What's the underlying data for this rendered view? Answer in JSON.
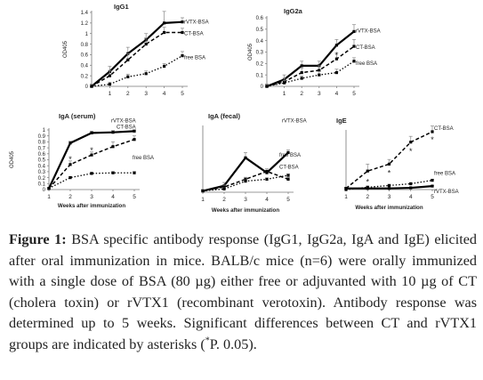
{
  "chart_data": [
    {
      "type": "line",
      "title": "IgG1",
      "ylabel": "OD405",
      "xlabel": "",
      "x": [
        0,
        1,
        2,
        3,
        4,
        5
      ],
      "ylim": [
        0,
        1.4
      ],
      "yticks": [
        "0",
        "0.2",
        "0.4",
        "0.6",
        "0.8",
        "1",
        "1.2",
        "1.4"
      ],
      "xticks": [
        "",
        "1",
        "2",
        "3",
        "4",
        "5"
      ],
      "series": [
        {
          "name": "rVTX-BSA",
          "style": "solid",
          "values": [
            0.0,
            0.28,
            0.62,
            0.88,
            1.2,
            1.22
          ],
          "errors": [
            0.04,
            0.1,
            0.12,
            0.12,
            0.22,
            0.08
          ]
        },
        {
          "name": "CT-BSA",
          "style": "dashed",
          "values": [
            0.0,
            0.2,
            0.5,
            0.8,
            1.02,
            1.02
          ],
          "errors": [
            0.04,
            0.1,
            0.12,
            0.12,
            0.1,
            0.08
          ]
        },
        {
          "name": "free BSA",
          "style": "dotted",
          "values": [
            0.0,
            0.04,
            0.18,
            0.24,
            0.38,
            0.58
          ],
          "errors": [
            0.02,
            0.04,
            0.05,
            0.05,
            0.05,
            0.08
          ]
        }
      ],
      "asterisks": []
    },
    {
      "type": "line",
      "title": "IgG2a",
      "ylabel": "OD405",
      "xlabel": "",
      "x": [
        0,
        1,
        2,
        3,
        4,
        5
      ],
      "ylim": [
        0,
        0.6
      ],
      "yticks": [
        "0",
        "0.1",
        "0.2",
        "0.3",
        "0.4",
        "0.5",
        "0.6"
      ],
      "xticks": [
        "",
        "1",
        "2",
        "3",
        "4",
        "5"
      ],
      "series": [
        {
          "name": "rVTX-BSA",
          "style": "solid",
          "values": [
            0.0,
            0.06,
            0.18,
            0.18,
            0.36,
            0.48
          ],
          "errors": [
            0.02,
            0.04,
            0.04,
            0.04,
            0.05,
            0.06
          ]
        },
        {
          "name": "CT-BSA",
          "style": "dashed",
          "values": [
            0.0,
            0.04,
            0.12,
            0.14,
            0.24,
            0.35
          ],
          "errors": [
            0.02,
            0.03,
            0.04,
            0.04,
            0.05,
            0.06
          ]
        },
        {
          "name": "free BSA",
          "style": "dotted",
          "values": [
            0.0,
            0.03,
            0.07,
            0.1,
            0.12,
            0.22
          ],
          "errors": [
            0.01,
            0.02,
            0.02,
            0.03,
            0.03,
            0.03
          ]
        }
      ],
      "asterisks": [
        {
          "x": 4,
          "y": 0.28
        }
      ]
    },
    {
      "type": "line",
      "title": "IgA (serum)",
      "ylabel": "OD405",
      "xlabel": "Weeks after immunization",
      "x": [
        1,
        2,
        3,
        4,
        5
      ],
      "ylim": [
        0,
        1
      ],
      "yticks": [
        "0",
        "0.1",
        "0.2",
        "0.3",
        "0.4",
        "0.5",
        "0.6",
        "0.7",
        "0.8",
        "0.9",
        "1"
      ],
      "xticks": [
        "1",
        "2",
        "3",
        "4",
        "5"
      ],
      "series": [
        {
          "name": "rVTX-BSA",
          "style": "solid",
          "values": [
            0.02,
            0.78,
            0.95,
            0.96,
            0.98
          ],
          "errors": [
            0.01,
            0.03,
            0.03,
            0.03,
            0.02
          ]
        },
        {
          "name": "CT-BSA",
          "style": "dashed",
          "values": [
            0.02,
            0.42,
            0.58,
            0.72,
            0.84
          ],
          "errors": [
            0.01,
            0.06,
            0.05,
            0.08,
            0.06
          ]
        },
        {
          "name": "free BSA",
          "style": "dotted",
          "values": [
            0.02,
            0.2,
            0.27,
            0.28,
            0.28
          ],
          "errors": [
            0.01,
            0.02,
            0.02,
            0.02,
            0.02
          ]
        }
      ],
      "asterisks": [
        {
          "x": 2,
          "y": 0.52
        },
        {
          "x": 3,
          "y": 0.67
        }
      ]
    },
    {
      "type": "line",
      "title": "IgA (fecal)",
      "ylabel": "",
      "xlabel": "Weeks after immunization",
      "x": [
        1,
        2,
        3,
        4,
        5
      ],
      "ylim": [
        0,
        1
      ],
      "yticks": [],
      "xticks": [
        "1",
        "2",
        "3",
        "4",
        "5"
      ],
      "series": [
        {
          "name": "rVTX-BSA",
          "style": "solid",
          "values": [
            0.02,
            0.1,
            0.53,
            0.3,
            0.61
          ],
          "errors": [
            0.02,
            0.05,
            0.08,
            0.04,
            0.04
          ]
        },
        {
          "name": "CT-BSA",
          "style": "dashed",
          "values": [
            0.02,
            0.08,
            0.2,
            0.32,
            0.2
          ],
          "errors": [
            0.02,
            0.03,
            0.03,
            0.04,
            0.03
          ]
        },
        {
          "name": "free BSA",
          "style": "dotted",
          "values": [
            0.02,
            0.05,
            0.17,
            0.2,
            0.26
          ],
          "errors": [
            0.01,
            0.02,
            0.02,
            0.02,
            0.02
          ]
        }
      ],
      "asterisks": []
    },
    {
      "type": "line",
      "title": "IgE",
      "ylabel": "",
      "xlabel": "Weeks after immunization",
      "x": [
        1,
        2,
        3,
        4,
        5
      ],
      "ylim": [
        0,
        1
      ],
      "yticks": [],
      "xticks": [
        "1",
        "2",
        "3",
        "4",
        "5"
      ],
      "series": [
        {
          "name": "CT-BSA",
          "style": "dashed",
          "values": [
            0.02,
            0.32,
            0.44,
            0.82,
            1.0
          ],
          "errors": [
            0.02,
            0.12,
            0.08,
            0.1,
            0.1
          ]
        },
        {
          "name": "free BSA",
          "style": "dotted",
          "values": [
            0.0,
            0.04,
            0.07,
            0.1,
            0.16
          ],
          "errors": [
            0.01,
            0.02,
            0.02,
            0.02,
            0.02
          ]
        },
        {
          "name": "rVTX-BSA",
          "style": "solid",
          "values": [
            0.02,
            0.02,
            0.02,
            0.03,
            0.06
          ],
          "errors": [
            0.01,
            0.01,
            0.01,
            0.01,
            0.01
          ]
        }
      ],
      "asterisks": [
        {
          "x": 2,
          "y": 0.15
        },
        {
          "x": 3,
          "y": 0.3
        },
        {
          "x": 4,
          "y": 0.68
        },
        {
          "x": 5,
          "y": 0.88
        }
      ]
    }
  ],
  "caption": {
    "label": "Figure 1:",
    "text_1": " BSA specific antibody response (IgG1, IgG2a, IgA and IgE) elicited after oral immunization in mice. BALB/c mice (n=6) were orally immunized with a single dose of BSA (80 µg) either free or adjuvanted with 10 µg of CT (cholera toxin) or rVTX1 (recombinant verotoxin). Antibody response was determined up to 5 weeks. Significant differences between CT and rVTX1 groups are indicated by asterisks (",
    "sup": "*",
    "text_2": "P. 0.05)."
  },
  "colors": {
    "line": "#000000",
    "axis": "#777777",
    "text": "#222222"
  }
}
